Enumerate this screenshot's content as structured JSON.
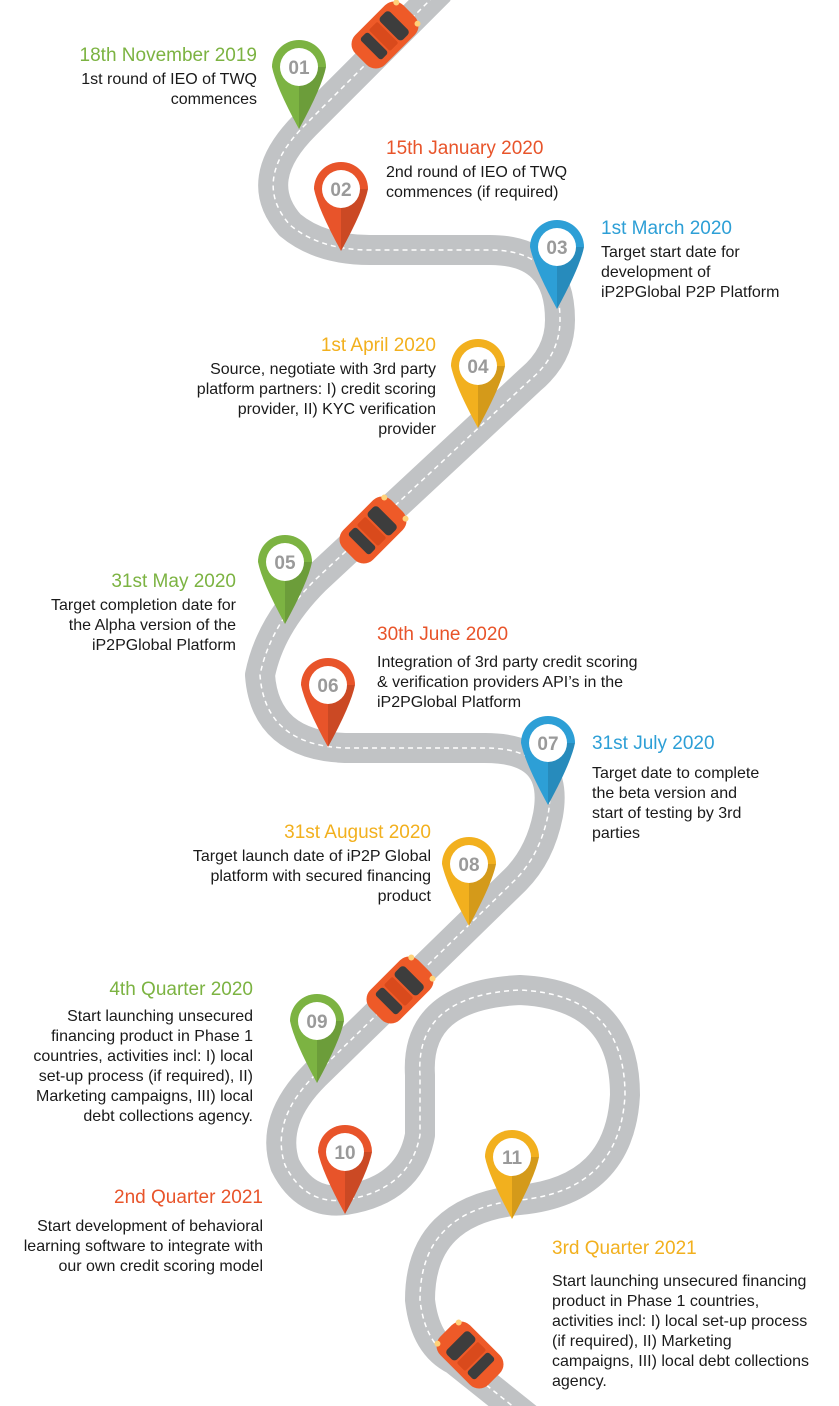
{
  "colors": {
    "green": "#7cb342",
    "orange": "#e8542a",
    "blue": "#2d9fd6",
    "yellow": "#f2b01e",
    "road": "#c1c3c5",
    "road_dash": "#ffffff",
    "car_body": "#ee5a28",
    "car_glass": "#3d3d3d",
    "pin_number": "#9a9a9a"
  },
  "milestones": [
    {
      "number": "01",
      "date": "18th November 2019",
      "description": "1st round of IEO of TWQ\ncommences",
      "color": "green"
    },
    {
      "number": "02",
      "date": "15th January 2020",
      "description": "2nd round of IEO of TWQ\ncommences (if required)",
      "color": "orange"
    },
    {
      "number": "03",
      "date": "1st March 2020",
      "description": "Target start date for\ndevelopment of\niP2PGlobal P2P Platform",
      "color": "blue"
    },
    {
      "number": "04",
      "date": "1st April 2020",
      "description": "Source, negotiate  with 3rd party\nplatform partners: I) credit scoring\nprovider, II) KYC verification\nprovider",
      "color": "yellow"
    },
    {
      "number": "05",
      "date": "31st May 2020",
      "description": "Target completion date for\nthe Alpha version of the\niP2PGlobal Platform",
      "color": "green"
    },
    {
      "number": "06",
      "date": "30th June 2020",
      "description": "Integration of 3rd party credit scoring\n& verification providers API’s in the\niP2PGlobal Platform",
      "color": "orange"
    },
    {
      "number": "07",
      "date": "31st July 2020",
      "description": "Target date to complete\nthe beta version and\nstart of testing by 3rd\nparties",
      "color": "blue"
    },
    {
      "number": "08",
      "date": "31st August 2020",
      "description": "Target launch date of iP2P Global\nplatform with secured financing\nproduct",
      "color": "yellow"
    },
    {
      "number": "09",
      "date": "4th Quarter 2020",
      "description": "Start launching unsecured\nfinancing product in Phase 1\ncountries, activities incl:  I) local\nset-up process (if required), II)\nMarketing campaigns, III) local\ndebt collections agency.",
      "color": "green"
    },
    {
      "number": "10",
      "date": "2nd Quarter 2021",
      "description": "Start development of behavioral\nlearning software to integrate with\nour own credit scoring model",
      "color": "orange"
    },
    {
      "number": "11",
      "date": "3rd Quarter 2021",
      "description": "Start launching unsecured financing\nproduct in Phase 1 countries,\nactivities incl:  I) local set-up process\n(if required), II) Marketing\ncampaigns, III) local debt collections\nagency.",
      "color": "yellow"
    }
  ],
  "icons": {
    "pin": "map-pin-icon",
    "car": "car-icon"
  }
}
